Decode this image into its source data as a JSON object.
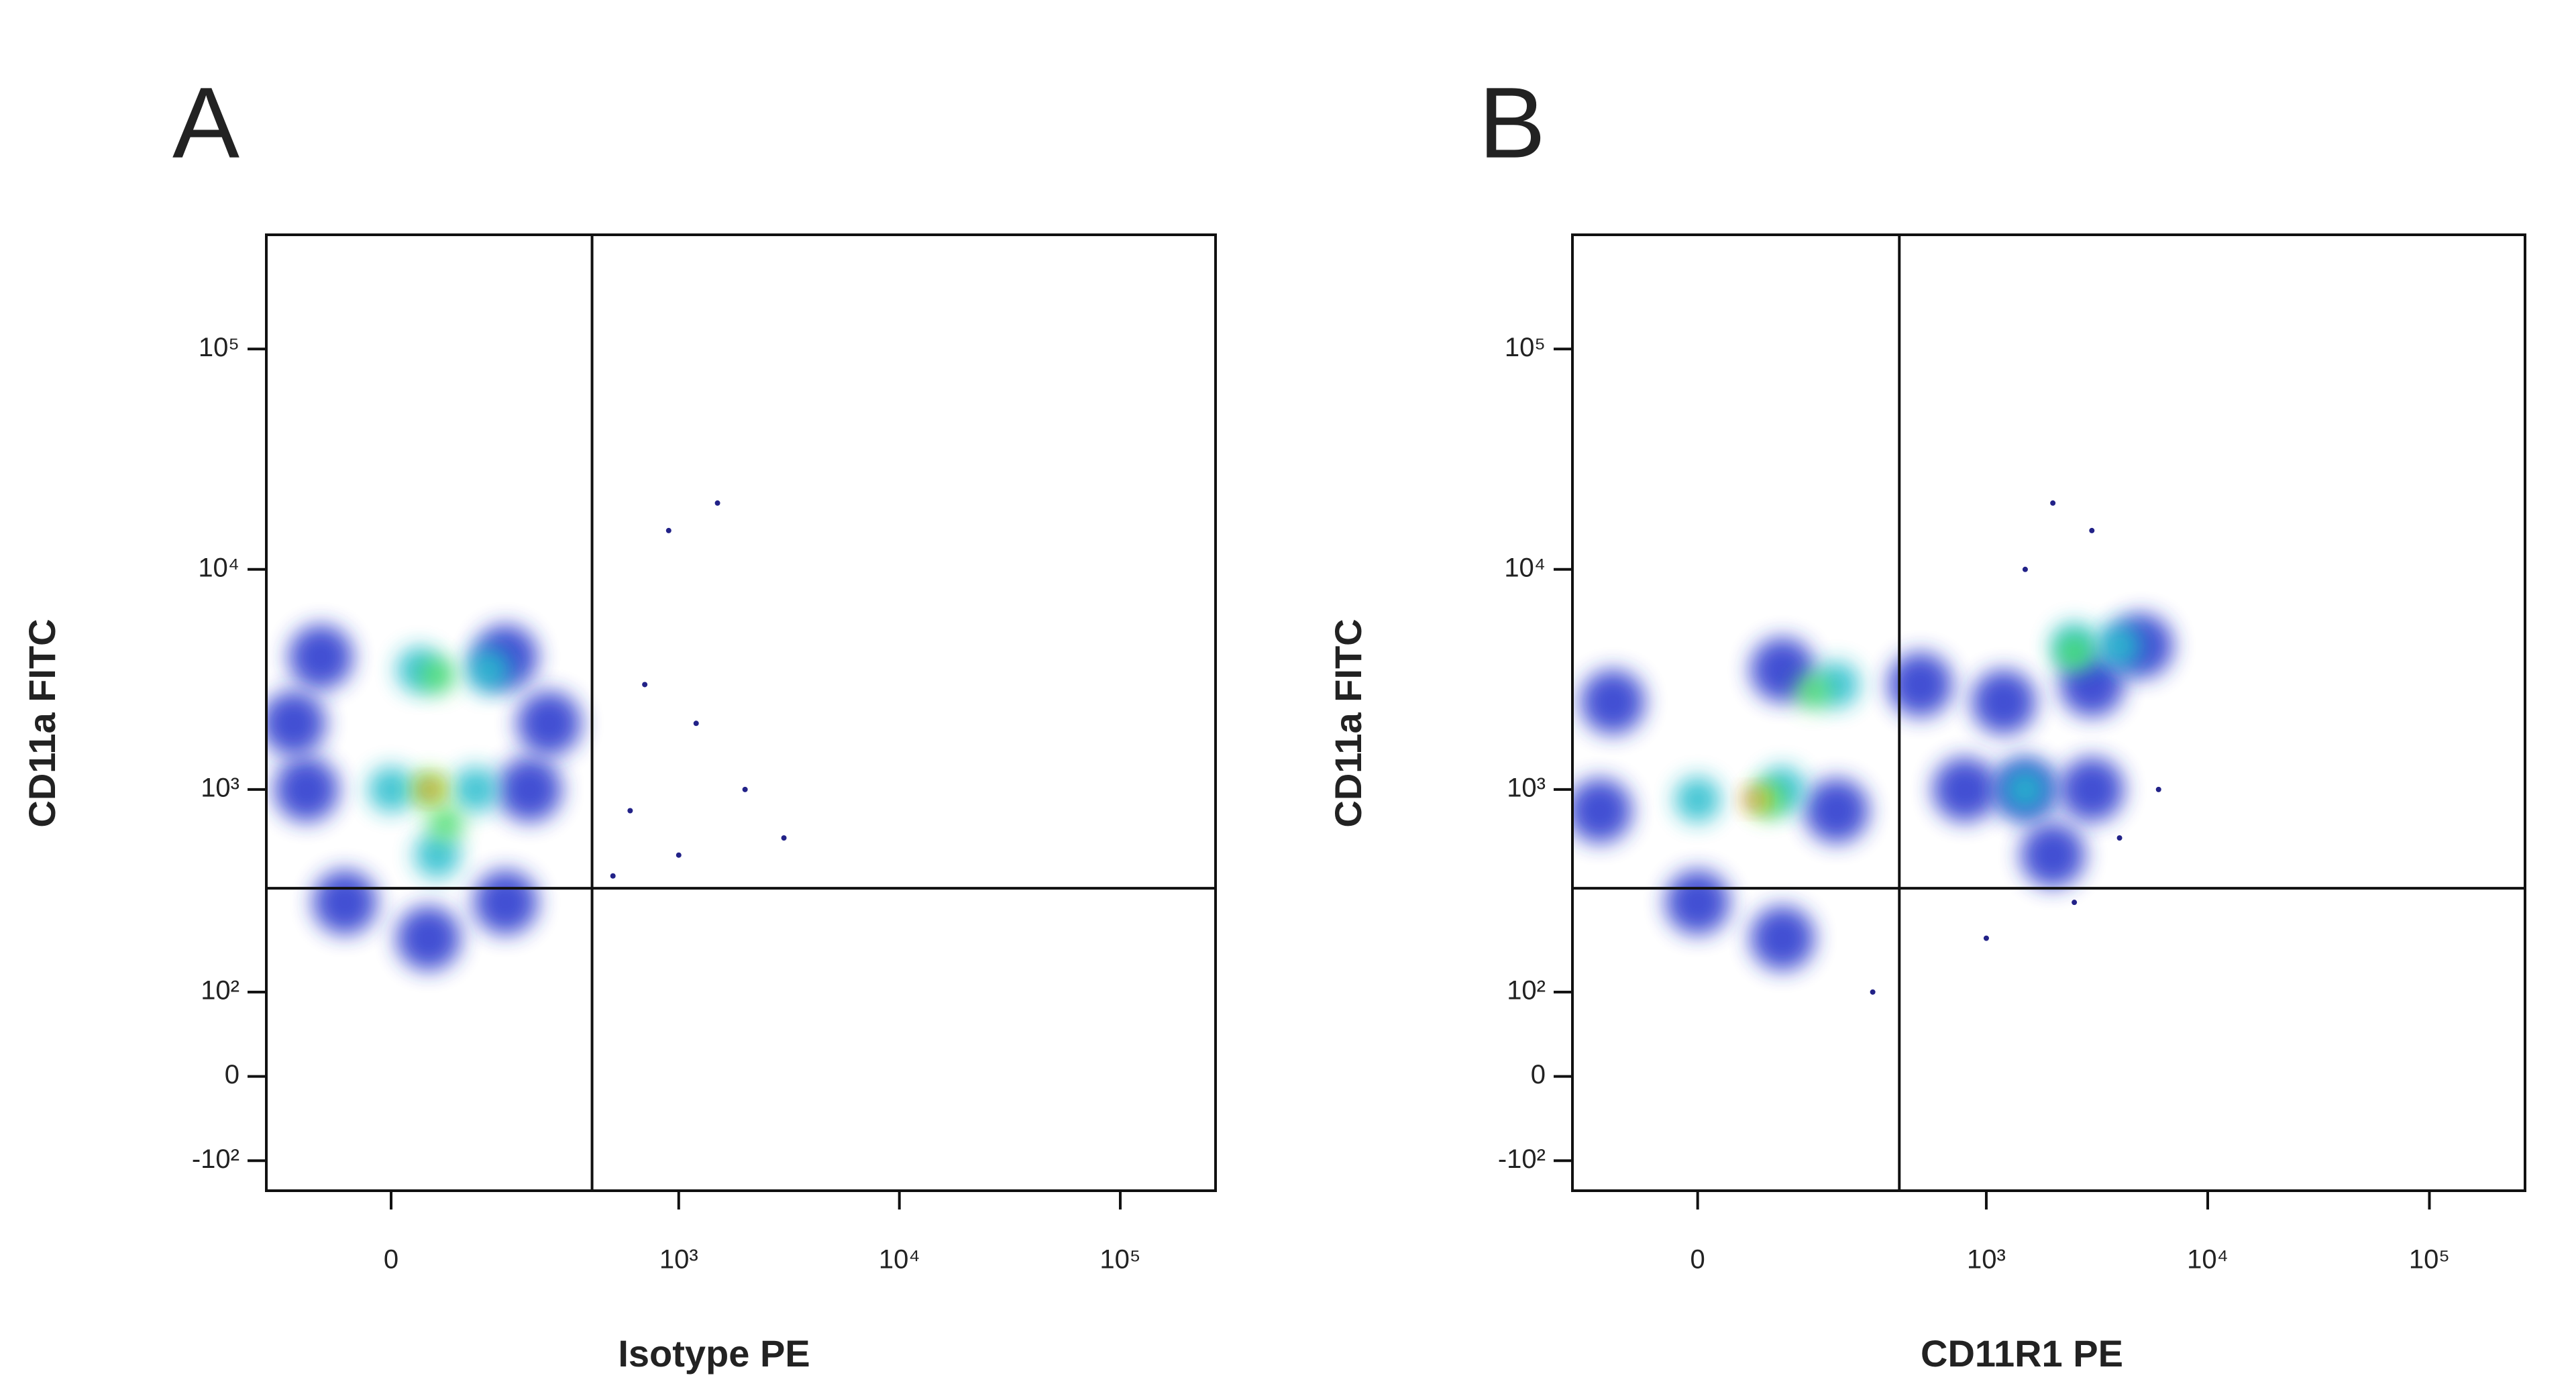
{
  "chart_data": [
    {
      "type": "scatter",
      "panel_label": "A",
      "x_label": "Isotype PE",
      "y_label": "CD11a FITC",
      "xlim": [
        -170,
        270000
      ],
      "ylim": [
        -150,
        330000
      ],
      "xscale": "biexponential",
      "yscale": "biexponential",
      "xticks": [
        0,
        {
          "value": 1000,
          "label": "10³"
        },
        {
          "value": 10000,
          "label": "10⁴"
        },
        {
          "value": 100000,
          "label": "10⁵"
        }
      ],
      "yticks": [
        {
          "value": -100,
          "label": "-10²"
        },
        0,
        {
          "value": 100,
          "label": "10²"
        },
        {
          "value": 1000,
          "label": "10³"
        },
        {
          "value": 10000,
          "label": "10⁴"
        },
        {
          "value": 100000,
          "label": "10⁵"
        }
      ],
      "gate_x": 400,
      "gate_y": 350,
      "series": [
        {
          "color": "#2233cc",
          "marker": "blob",
          "x": [
            -80,
            150,
            -100,
            200,
            -50,
            150,
            40,
            250,
            -120
          ],
          "y": [
            4000,
            4000,
            1000,
            1000,
            300,
            300,
            200,
            2000,
            2000
          ]
        },
        {
          "color": "#22bbcc",
          "marker": "blob",
          "x": [
            30,
            120,
            0,
            100,
            50
          ],
          "y": [
            3500,
            3500,
            1000,
            1000,
            500
          ]
        },
        {
          "color": "#44dd66",
          "marker": "blob",
          "x": [
            50,
            40,
            60
          ],
          "y": [
            3300,
            1000,
            700
          ]
        },
        {
          "color": "#eedd22",
          "marker": "blob",
          "x": [
            45
          ],
          "y": [
            1000
          ]
        },
        {
          "color": "#ee3322",
          "marker": "blob",
          "x": [
            40
          ],
          "y": [
            1000
          ]
        },
        {
          "color": "#222288",
          "marker": "dot",
          "x": [
            700,
            1200,
            600,
            2000,
            900,
            1500,
            3000,
            500,
            1000
          ],
          "y": [
            3000,
            2000,
            800,
            1000,
            15000,
            20000,
            600,
            400,
            500
          ]
        }
      ]
    },
    {
      "type": "scatter",
      "panel_label": "B",
      "x_label": "CD11R1 PE",
      "y_label": "CD11a FITC",
      "xlim": [
        -170,
        270000
      ],
      "ylim": [
        -150,
        330000
      ],
      "xscale": "biexponential",
      "yscale": "biexponential",
      "xticks": [
        0,
        {
          "value": 1000,
          "label": "10³"
        },
        {
          "value": 10000,
          "label": "10⁴"
        },
        {
          "value": 100000,
          "label": "10⁵"
        }
      ],
      "yticks": [
        {
          "value": -100,
          "label": "-10²"
        },
        0,
        {
          "value": 100,
          "label": "10²"
        },
        {
          "value": 1000,
          "label": "10³"
        },
        {
          "value": 10000,
          "label": "10⁴"
        },
        {
          "value": 100000,
          "label": "10⁵"
        }
      ],
      "gate_x": 400,
      "gate_y": 350,
      "series": [
        {
          "color": "#2233cc",
          "marker": "blob",
          "x": [
            -100,
            100,
            500,
            -120,
            200,
            0,
            100,
            800,
            1500,
            3000,
            1200,
            3000,
            5000,
            2000
          ],
          "y": [
            2500,
            3500,
            3000,
            800,
            800,
            300,
            200,
            1000,
            1000,
            1000,
            2500,
            3000,
            4500,
            500
          ]
        },
        {
          "color": "#22bbcc",
          "marker": "blob",
          "x": [
            100,
            0,
            200,
            2500,
            4000,
            1500
          ],
          "y": [
            1000,
            900,
            3000,
            4500,
            4500,
            1000
          ]
        },
        {
          "color": "#44dd66",
          "marker": "blob",
          "x": [
            80,
            150,
            2500
          ],
          "y": [
            900,
            2800,
            4200
          ]
        },
        {
          "color": "#eedd22",
          "marker": "blob",
          "x": [
            70
          ],
          "y": [
            900
          ]
        },
        {
          "color": "#ee3322",
          "marker": "blob",
          "x": [
            60
          ],
          "y": [
            900
          ]
        },
        {
          "color": "#222288",
          "marker": "dot",
          "x": [
            2000,
            3000,
            4000,
            1000,
            6000,
            300,
            2500,
            1500
          ],
          "y": [
            20000,
            15000,
            600,
            200,
            1000,
            100,
            300,
            10000
          ]
        }
      ]
    }
  ]
}
